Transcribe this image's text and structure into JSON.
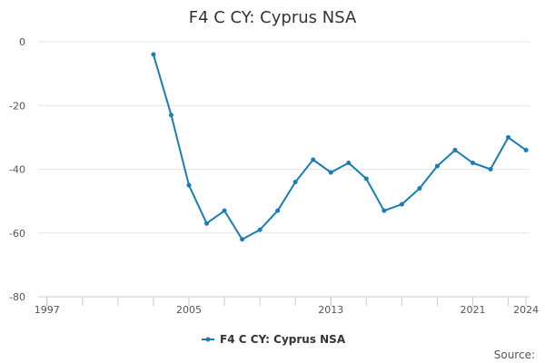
{
  "chart_data": {
    "type": "line",
    "title": "F4 C CY: Cyprus NSA",
    "xlabel": "",
    "ylabel": "",
    "xlim": [
      1996.5,
      2024.2
    ],
    "ylim": [
      -80,
      0
    ],
    "x_ticks": [
      {
        "value": 1997,
        "label": "1997"
      },
      {
        "value": 2005,
        "label": "2005"
      },
      {
        "value": 2013,
        "label": "2013"
      },
      {
        "value": 2021,
        "label": "2021"
      },
      {
        "value": 2024,
        "label": "2024"
      }
    ],
    "x_minor_ticks": [
      1997,
      1999,
      2001,
      2003,
      2005,
      2007,
      2009,
      2011,
      2013,
      2015,
      2017,
      2019,
      2021,
      2023
    ],
    "y_ticks": [
      {
        "value": 0,
        "label": "0"
      },
      {
        "value": -20,
        "label": "-20"
      },
      {
        "value": -40,
        "label": "-40"
      },
      {
        "value": -60,
        "label": "-60"
      },
      {
        "value": -80,
        "label": "-80"
      }
    ],
    "grid": "horizontal",
    "legend_position": "bottom-center",
    "color": "#1a7db6",
    "series": [
      {
        "name": "F4 C CY: Cyprus NSA",
        "x": [
          2003,
          2004,
          2005,
          2006,
          2007,
          2008,
          2009,
          2010,
          2011,
          2012,
          2013,
          2014,
          2015,
          2016,
          2017,
          2018,
          2019,
          2020,
          2021,
          2022,
          2023,
          2024
        ],
        "y": [
          -4,
          -23,
          -45,
          -57,
          -53,
          -62,
          -59,
          -53,
          -44,
          -37,
          -41,
          -38,
          -43,
          -53,
          -51,
          -46,
          -39,
          -34,
          -38,
          -40,
          -30,
          -34
        ]
      }
    ]
  },
  "legend": {
    "label": "F4 C CY: Cyprus NSA"
  },
  "footer": {
    "source": "Source:"
  }
}
